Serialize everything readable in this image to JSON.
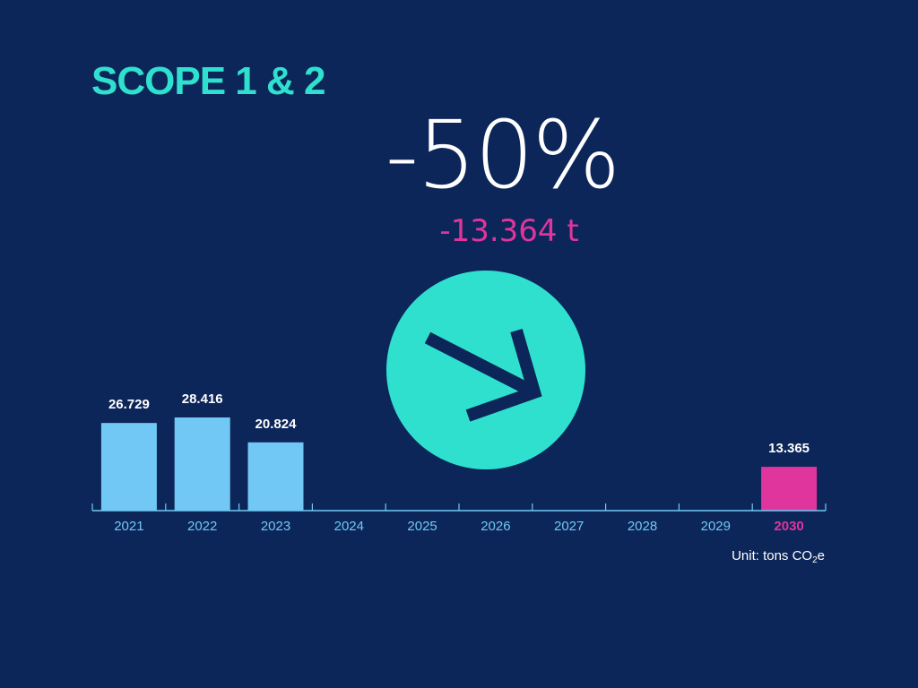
{
  "title": "SCOPE 1 & 2",
  "headline": "-50%",
  "subline": "-13.364 t",
  "unit_note": {
    "prefix": "Unit: tons CO",
    "subscript": "2",
    "suffix": "e"
  },
  "icon": "arrow-down-right-icon",
  "colors": {
    "background": "#0c2659",
    "accent": "#2fe0cf",
    "actual_bar": "#71c8f4",
    "target_bar": "#e0359d",
    "axis": "#71c8f4"
  },
  "chart_data": {
    "type": "bar",
    "categories": [
      "2021",
      "2022",
      "2023",
      "2024",
      "2025",
      "2026",
      "2027",
      "2028",
      "2029",
      "2030"
    ],
    "values": [
      26729,
      28416,
      20824,
      null,
      null,
      null,
      null,
      null,
      null,
      13365
    ],
    "value_labels": [
      "26.729",
      "28.416",
      "20.824",
      "",
      "",
      "",
      "",
      "",
      "",
      "13.365"
    ],
    "highlight_category": "2030",
    "ylim": [
      0,
      28416
    ],
    "xlabel": "",
    "ylabel": "",
    "grid": false
  }
}
